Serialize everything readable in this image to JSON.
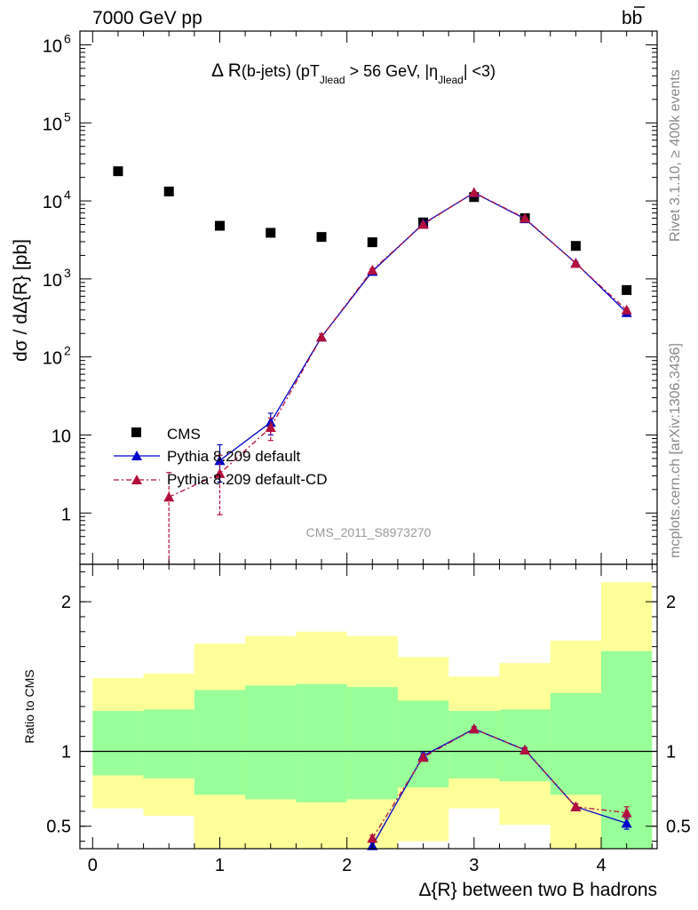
{
  "header": {
    "left": "7000 GeV pp",
    "right": "b̅b̅",
    "right_plain": "bb",
    "right_bar": "b"
  },
  "side_labels": {
    "rivet": "Rivet 3.1.10, ≥ 400k events",
    "mcplots": "mcplots.cern.ch [arXiv:1306.3436]"
  },
  "watermark": "CMS_2011_S8973270",
  "chart_data": [
    {
      "type": "scatter",
      "panel": "main",
      "title_parts": {
        "a": "Δ R",
        "b": "(b-jets) (pT",
        "b_sub": "Jlead",
        "c": " >  56 GeV, |η",
        "c_sub": "Jlead",
        "d": "| <3)"
      },
      "xlabel": "",
      "ylabel": "dσ / dΔ{R} [pb]",
      "y_scale": "log",
      "xlim": [
        -0.1,
        4.44
      ],
      "ylim": [
        0.22,
        1500000
      ],
      "y_ticks": [
        {
          "value": 1,
          "label": "1"
        },
        {
          "value": 10,
          "label": "10"
        },
        {
          "value": 100,
          "label": "10",
          "exp": "2"
        },
        {
          "value": 1000,
          "label": "10",
          "exp": "3"
        },
        {
          "value": 10000,
          "label": "10",
          "exp": "4"
        },
        {
          "value": 100000,
          "label": "10",
          "exp": "5"
        },
        {
          "value": 1000000,
          "label": "10",
          "exp": "6"
        }
      ],
      "legend_position": "bottom-left",
      "series": [
        {
          "name": "CMS",
          "color": "#000000",
          "marker": "square",
          "x": [
            0.2,
            0.6,
            1.0,
            1.4,
            1.8,
            2.2,
            2.6,
            3.0,
            3.4,
            3.8,
            4.2
          ],
          "y": [
            24000,
            13200,
            4800,
            3900,
            3450,
            2950,
            5300,
            11200,
            6000,
            2650,
            720
          ]
        },
        {
          "name": "Pythia 8.209 default",
          "color": "#0000cc",
          "marker": "triangle",
          "line": "solid",
          "x": [
            1.0,
            1.4,
            1.8,
            2.2,
            2.6,
            3.0,
            3.4,
            3.8,
            4.2
          ],
          "y": [
            4.7,
            14.5,
            180,
            1250,
            5100,
            12700,
            5900,
            1600,
            370
          ],
          "err_low": [
            2.2,
            4.5,
            18,
            60,
            120,
            200,
            120,
            60,
            20
          ],
          "err_high": [
            2.8,
            4.5,
            18,
            60,
            120,
            200,
            120,
            60,
            20
          ]
        },
        {
          "name": "Pythia 8.209 default-CD",
          "color": "#b30f3c",
          "marker": "triangle",
          "line": "dash-dot",
          "x": [
            0.6,
            1.0,
            1.4,
            1.8,
            2.2,
            2.6,
            3.0,
            3.4,
            3.8,
            4.2
          ],
          "y": [
            1.6,
            3.2,
            12.5,
            180,
            1300,
            5000,
            12800,
            6000,
            1580,
            400
          ],
          "err_low": [
            1.45,
            2.25,
            4.0,
            18,
            60,
            120,
            200,
            120,
            60,
            20
          ],
          "err_high": [
            1.7,
            2.3,
            4.0,
            18,
            60,
            120,
            200,
            120,
            60,
            20
          ]
        }
      ]
    },
    {
      "type": "scatter",
      "panel": "ratio",
      "xlabel": "Δ{R} between two B hadrons",
      "ylabel": "Ratio to CMS",
      "xlim": [
        -0.1,
        4.44
      ],
      "ylim": [
        0.35,
        2.25
      ],
      "x_ticks": [
        {
          "value": 0,
          "label": "0"
        },
        {
          "value": 1,
          "label": "1"
        },
        {
          "value": 2,
          "label": "2"
        },
        {
          "value": 3,
          "label": "3"
        },
        {
          "value": 4,
          "label": "4"
        }
      ],
      "y_ticks": [
        {
          "value": 0.5,
          "label": "0.5"
        },
        {
          "value": 1,
          "label": "1"
        },
        {
          "value": 2,
          "label": "2"
        }
      ],
      "bands": {
        "bins": [
          [
            0,
            0.4
          ],
          [
            0.4,
            0.8
          ],
          [
            0.8,
            1.2
          ],
          [
            1.2,
            1.6
          ],
          [
            1.6,
            2.0
          ],
          [
            2.0,
            2.4
          ],
          [
            2.4,
            2.8
          ],
          [
            2.8,
            3.2
          ],
          [
            3.2,
            3.6
          ],
          [
            3.6,
            4.0
          ],
          [
            4.0,
            4.4
          ]
        ],
        "inner_low": [
          0.84,
          0.82,
          0.71,
          0.68,
          0.66,
          0.68,
          0.76,
          0.82,
          0.8,
          0.71,
          0.35
        ],
        "inner_high": [
          1.27,
          1.28,
          1.41,
          1.44,
          1.45,
          1.43,
          1.34,
          1.27,
          1.28,
          1.39,
          1.67
        ],
        "outer_low": [
          0.62,
          0.57,
          0.35,
          0.35,
          0.35,
          0.35,
          0.4,
          0.62,
          0.51,
          0.35,
          0.35
        ],
        "outer_high": [
          1.49,
          1.52,
          1.72,
          1.77,
          1.8,
          1.77,
          1.63,
          1.5,
          1.59,
          1.74,
          2.13
        ],
        "inner_color": "#99ff99",
        "outer_color": "#ffff99"
      },
      "reference_line": 1,
      "series": [
        {
          "name": "Pythia 8.209 default",
          "color": "#0000cc",
          "marker": "triangle",
          "line": "solid",
          "x": [
            2.2,
            2.6,
            3.0,
            3.4,
            3.8,
            4.2
          ],
          "y": [
            0.37,
            0.97,
            1.15,
            1.01,
            0.63,
            0.52
          ],
          "err_low": [
            0.02,
            0.02,
            0.015,
            0.015,
            0.02,
            0.04
          ],
          "err_high": [
            0.02,
            0.02,
            0.015,
            0.015,
            0.02,
            0.04
          ]
        },
        {
          "name": "Pythia 8.209 default-CD",
          "color": "#b30f3c",
          "marker": "triangle",
          "line": "dash-dot",
          "x": [
            2.2,
            2.6,
            3.0,
            3.4,
            3.8,
            4.2
          ],
          "y": [
            0.42,
            0.96,
            1.15,
            1.01,
            0.63,
            0.59
          ],
          "err_low": [
            0.02,
            0.02,
            0.015,
            0.015,
            0.02,
            0.04
          ],
          "err_high": [
            0.02,
            0.02,
            0.015,
            0.015,
            0.02,
            0.04
          ]
        }
      ]
    }
  ]
}
